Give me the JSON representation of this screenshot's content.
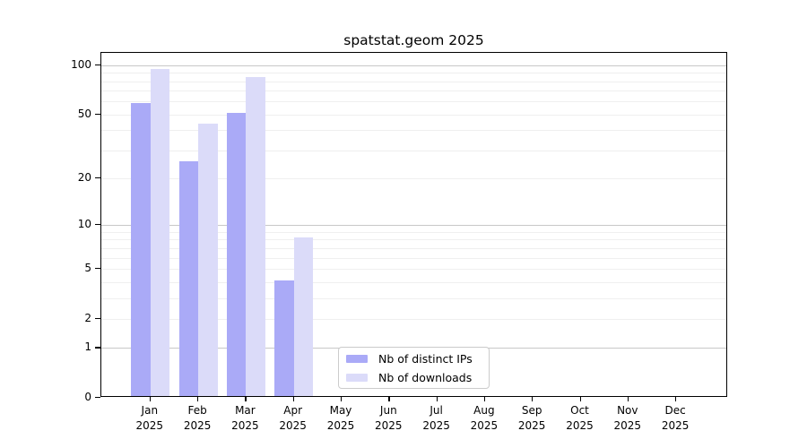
{
  "title": "spatstat.geom 2025",
  "colors": {
    "ips": "#aaaaf7",
    "downloads": "#dbdbf9",
    "grid_minor": "#efefef",
    "grid_major": "#c8c8c8",
    "axis": "#000000",
    "legend_border": "#cccccc"
  },
  "legend": {
    "items": [
      {
        "label": "Nb of distinct IPs",
        "color_key": "ips"
      },
      {
        "label": "Nb of downloads",
        "color_key": "downloads"
      }
    ]
  },
  "x_axis": {
    "months": [
      "Jan",
      "Feb",
      "Mar",
      "Apr",
      "May",
      "Jun",
      "Jul",
      "Aug",
      "Sep",
      "Oct",
      "Nov",
      "Dec"
    ],
    "year": "2025"
  },
  "y_axis": {
    "ticks": [
      {
        "value": 100,
        "label": "100"
      },
      {
        "value": 50,
        "label": "50"
      },
      {
        "value": 20,
        "label": "20"
      },
      {
        "value": 10,
        "label": "10"
      },
      {
        "value": 5,
        "label": "5"
      },
      {
        "value": 2,
        "label": "2"
      },
      {
        "value": 1,
        "label": "1"
      },
      {
        "value": 0,
        "label": "0"
      }
    ]
  },
  "chart_data": {
    "type": "bar",
    "title": "spatstat.geom 2025",
    "xlabel": "",
    "ylabel": "",
    "categories": [
      "Jan 2025",
      "Feb 2025",
      "Mar 2025",
      "Apr 2025",
      "May 2025",
      "Jun 2025",
      "Jul 2025",
      "Aug 2025",
      "Sep 2025",
      "Oct 2025",
      "Nov 2025",
      "Dec 2025"
    ],
    "series": [
      {
        "name": "Nb of distinct IPs",
        "color_key": "ips",
        "values": [
          57,
          25,
          50,
          4,
          0,
          0,
          0,
          0,
          0,
          0,
          0,
          0
        ]
      },
      {
        "name": "Nb of downloads",
        "color_key": "downloads",
        "values": [
          93,
          43,
          83,
          8,
          0,
          0,
          0,
          0,
          0,
          0,
          0,
          0
        ]
      }
    ],
    "yscale": "log1p",
    "ylim": [
      0,
      119
    ],
    "yticks": [
      0,
      1,
      2,
      5,
      10,
      20,
      50,
      100
    ],
    "grid": "horizontal",
    "grid_major_values": [
      1,
      10,
      100
    ],
    "grid_minor_values": [
      2,
      3,
      4,
      5,
      6,
      7,
      8,
      9,
      20,
      30,
      40,
      50,
      60,
      70,
      80,
      90
    ],
    "legend_position": "lower center"
  }
}
